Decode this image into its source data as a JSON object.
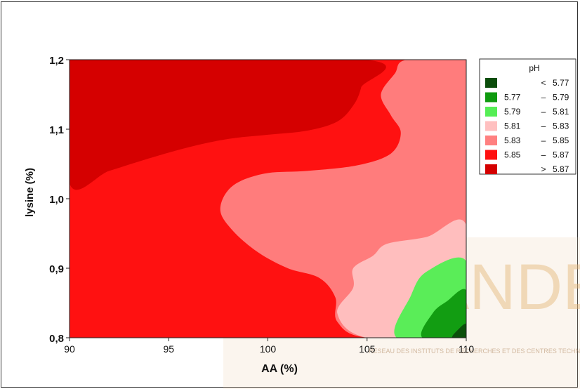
{
  "chart_data": {
    "type": "contour",
    "xlabel": "AA (%)",
    "ylabel": "lysine (%)",
    "xlim": [
      90,
      110
    ],
    "ylim": [
      0.8,
      1.2
    ],
    "x_ticks": [
      "90",
      "95",
      "100",
      "105",
      "110"
    ],
    "y_ticks": [
      "0,8",
      "0,9",
      "1,0",
      "1,1",
      "1,2"
    ],
    "legend": {
      "title": "pH",
      "placement": "right",
      "entries": [
        {
          "op": "<",
          "low": "",
          "high": "5.77",
          "color": "#0b4d0b"
        },
        {
          "op": "–",
          "low": "5.77",
          "high": "5.79",
          "color": "#0f9a0f"
        },
        {
          "op": "–",
          "low": "5.79",
          "high": "5.81",
          "color": "#55ee55"
        },
        {
          "op": "–",
          "low": "5.81",
          "high": "5.83",
          "color": "#ffc0c0"
        },
        {
          "op": "–",
          "low": "5.83",
          "high": "5.85",
          "color": "#ff8080"
        },
        {
          "op": "–",
          "low": "5.85",
          "high": "5.87",
          "color": "#ff1111"
        },
        {
          "op": ">",
          "low": "",
          "high": "5.87",
          "color": "#d40000"
        }
      ]
    },
    "regions": [
      {
        "range": "5.85 – 5.87",
        "color": "#ff1111",
        "polygon": [
          [
            90,
            0.8
          ],
          [
            110,
            0.8
          ],
          [
            110,
            1.2
          ],
          [
            90,
            1.2
          ]
        ]
      },
      {
        "range": "> 5.87",
        "color": "#d40000",
        "polygon": [
          [
            90,
            1.2
          ],
          [
            90,
            1.022
          ],
          [
            92,
            1.04
          ],
          [
            94,
            1.058
          ],
          [
            96,
            1.074
          ],
          [
            98,
            1.086
          ],
          [
            100,
            1.092
          ],
          [
            102,
            1.098
          ],
          [
            103.5,
            1.111
          ],
          [
            104.3,
            1.134
          ],
          [
            104.7,
            1.16
          ],
          [
            104.9,
            1.2
          ]
        ]
      },
      {
        "range": "5.83 – 5.85",
        "color": "#ff8080",
        "polygon": [
          [
            107,
            1.2
          ],
          [
            110,
            1.2
          ],
          [
            110,
            0.8
          ],
          [
            105,
            0.8
          ],
          [
            103.5,
            0.823
          ],
          [
            103.4,
            0.858
          ],
          [
            102.6,
            0.886
          ],
          [
            101,
            0.9
          ],
          [
            99.5,
            0.923
          ],
          [
            98.2,
            0.955
          ],
          [
            97.6,
            0.985
          ],
          [
            98.2,
            1.018
          ],
          [
            99.8,
            1.036
          ],
          [
            102,
            1.04
          ],
          [
            104.5,
            1.048
          ],
          [
            106.2,
            1.065
          ],
          [
            106.7,
            1.095
          ],
          [
            106.2,
            1.12
          ],
          [
            105.7,
            1.15
          ],
          [
            106.4,
            1.18
          ]
        ]
      },
      {
        "range": "5.81 – 5.83",
        "color": "#ffc0c0",
        "polygon": [
          [
            105,
            0.8
          ],
          [
            110,
            0.8
          ],
          [
            110,
            0.962
          ],
          [
            108,
            0.945
          ],
          [
            106,
            0.935
          ],
          [
            105.3,
            0.918
          ],
          [
            104.3,
            0.9
          ],
          [
            104.3,
            0.872
          ],
          [
            103.5,
            0.835
          ]
        ]
      },
      {
        "range": "5.79 – 5.81",
        "color": "#55ee55",
        "polygon": [
          [
            106.5,
            0.8
          ],
          [
            110,
            0.8
          ],
          [
            110,
            0.91
          ],
          [
            108,
            0.895
          ],
          [
            107.2,
            0.86
          ]
        ]
      },
      {
        "range": "5.77 – 5.79",
        "color": "#0f9a0f",
        "polygon": [
          [
            107.8,
            0.8
          ],
          [
            110,
            0.8
          ],
          [
            110,
            0.868
          ],
          [
            109,
            0.852
          ],
          [
            108.3,
            0.835
          ]
        ]
      },
      {
        "range": "< 5.77",
        "color": "#0b4d0b",
        "polygon": [
          [
            109.3,
            0.8
          ],
          [
            110,
            0.8
          ],
          [
            110,
            0.82
          ],
          [
            109.6,
            0.812
          ]
        ]
      }
    ]
  },
  "watermark": {
    "text": "VIANDES & PRODUITS CARNÉS",
    "subtext": "RESEAU DES INSTITUTS DE RECHERCHES ET DES CENTRES TECHNIQUES"
  }
}
